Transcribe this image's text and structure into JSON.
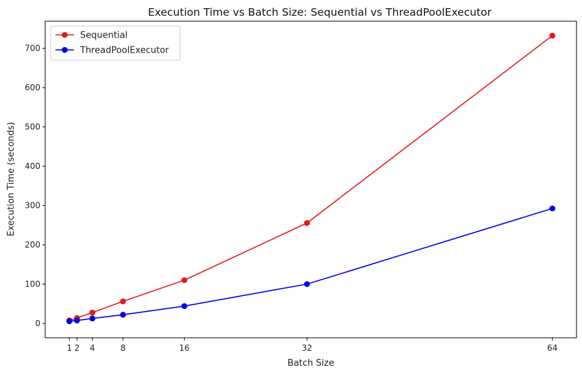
{
  "chart_data": {
    "type": "line",
    "title": "Execution Time vs Batch Size: Sequential vs ThreadPoolExecutor",
    "xlabel": "Batch Size",
    "ylabel": "Execution Time (seconds)",
    "x": [
      1,
      2,
      4,
      8,
      16,
      32,
      64
    ],
    "xticks": [
      1,
      2,
      4,
      8,
      16,
      32,
      64
    ],
    "yticks": [
      0,
      100,
      200,
      300,
      400,
      500,
      600,
      700
    ],
    "xlim": [
      -2.15,
      67.15
    ],
    "ylim": [
      -36.6,
      769.1
    ],
    "grid": false,
    "legend_position": "top-left",
    "series": [
      {
        "name": "Sequential",
        "color": "#e31a1c",
        "marker": "circle",
        "values": [
          7.5,
          13.5,
          27.5,
          56,
          110,
          255.5,
          732.5
        ]
      },
      {
        "name": "ThreadPoolExecutor",
        "color": "#0000e6",
        "marker": "circle",
        "values": [
          5.5,
          7.5,
          12.5,
          22,
          44,
          100,
          292.5
        ]
      }
    ]
  }
}
